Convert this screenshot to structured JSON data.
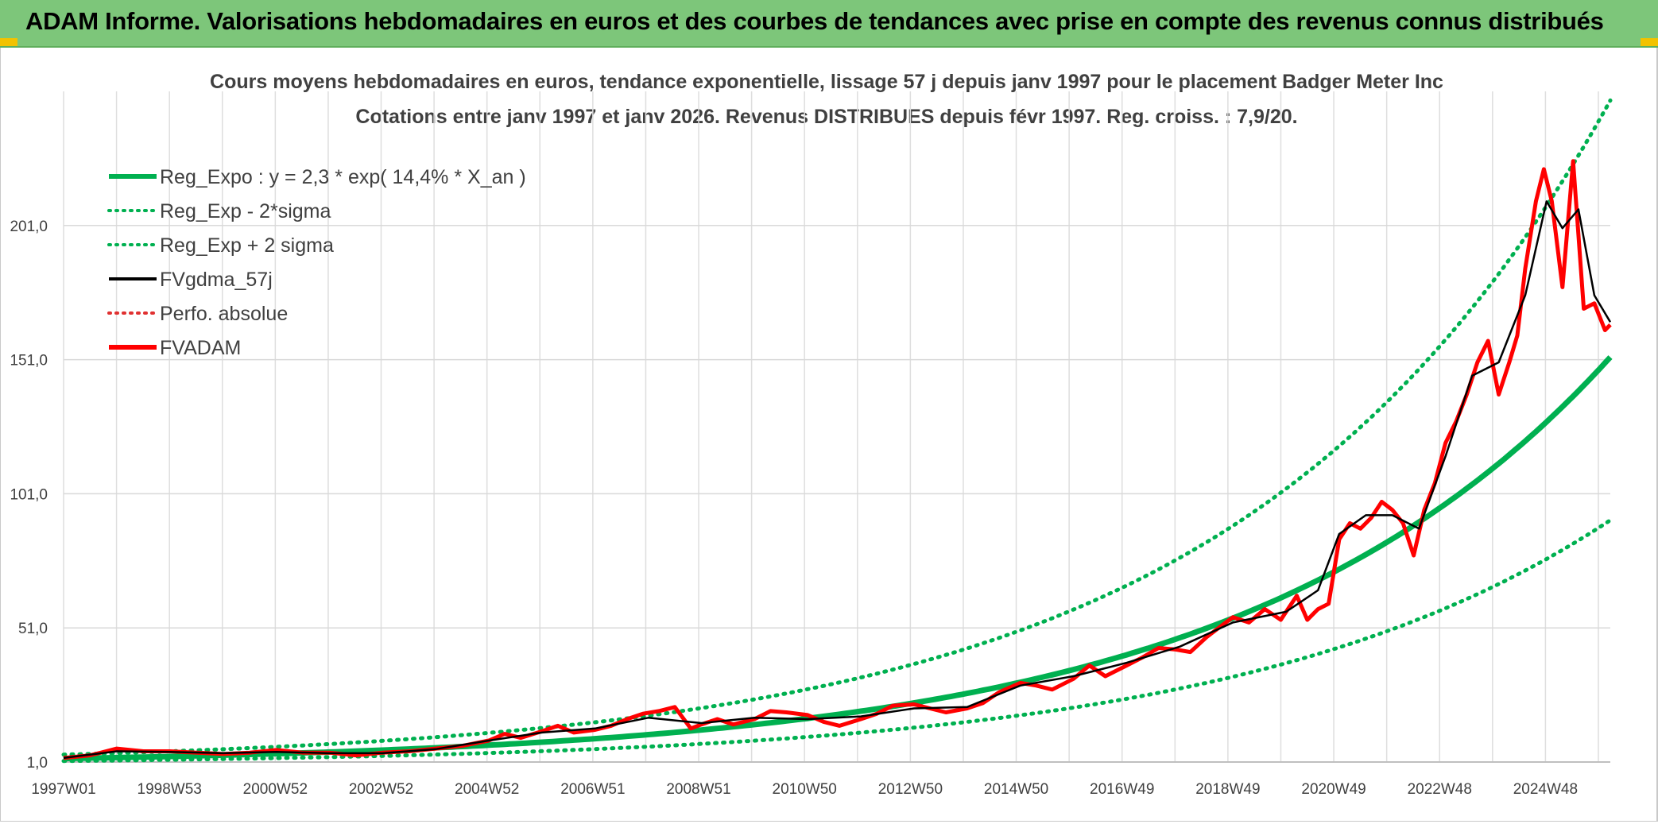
{
  "banner": {
    "title": "ADAM Informe. Valorisations hebdomadaires en euros et des courbes de tendances avec prise en compte des revenus connus distribués"
  },
  "colors": {
    "banner": "#7dc67a",
    "reg_green": "#00b050",
    "fvgdma": "#000000",
    "fvadam": "#ff0000",
    "perfo": "#e03030"
  },
  "chart_data": {
    "type": "line",
    "title": "Cours moyens hebdomadaires en euros, tendance exponentielle, lissage 57 j depuis janv 1997 pour le placement Badger Meter Inc",
    "subtitle": "Cotations entre janv 1997 et janv 2026. Revenus DISTRIBUES depuis févr 1997. Reg. croiss. : 7,9/20.",
    "x_ticks": [
      "1997W01",
      "1998W53",
      "2000W52",
      "2002W52",
      "2004W52",
      "2006W51",
      "2008W51",
      "2010W50",
      "2012W50",
      "2014W50",
      "2016W49",
      "2018W49",
      "2020W49",
      "2022W48",
      "2024W48"
    ],
    "y_ticks": [
      "1,0",
      "51,0",
      "101,0",
      "151,0",
      "201,0"
    ],
    "ylim": [
      1,
      251
    ],
    "xlim": [
      1997.0,
      2026.1
    ],
    "grid": true,
    "legend_position": "top-left",
    "legend": [
      {
        "key": "reg_expo",
        "label": "Reg_Expo : y = 2,3 * exp( 14,4% *  X_an )",
        "style": "solid",
        "color": "#00b050"
      },
      {
        "key": "reg_low",
        "label": "Reg_Exp - 2*sigma",
        "style": "dotted",
        "color": "#00b050"
      },
      {
        "key": "reg_high",
        "label": "Reg_Exp + 2 sigma",
        "style": "dotted",
        "color": "#00b050"
      },
      {
        "key": "fvgdma",
        "label": "FVgdma_57j",
        "style": "solid",
        "color": "#000000"
      },
      {
        "key": "perfo",
        "label": "Perfo. absolue",
        "style": "dotted",
        "color": "#e03030"
      },
      {
        "key": "fvadam",
        "label": "FVADAM",
        "style": "solid",
        "color": "#ff0000"
      }
    ],
    "regression": {
      "a": 2.3,
      "rate": 0.144,
      "low_factor": 0.6,
      "high_factor": 1.63
    },
    "series": [
      {
        "key": "fvadam",
        "x": [
          1997.0,
          1997.5,
          1998.0,
          1998.5,
          1999.0,
          1999.5,
          2000.0,
          2000.5,
          2001.0,
          2001.5,
          2002.0,
          2002.5,
          2003.0,
          2003.5,
          2004.0,
          2004.5,
          2005.0,
          2005.3,
          2005.6,
          2006.0,
          2006.3,
          2006.6,
          2007.0,
          2007.3,
          2007.6,
          2007.9,
          2008.2,
          2008.5,
          2008.8,
          2009.0,
          2009.3,
          2009.6,
          2010.0,
          2010.3,
          2010.6,
          2011.0,
          2011.3,
          2011.6,
          2012.0,
          2012.3,
          2012.6,
          2013.0,
          2013.3,
          2013.6,
          2014.0,
          2014.3,
          2014.6,
          2015.0,
          2015.3,
          2015.6,
          2016.0,
          2016.3,
          2016.6,
          2017.0,
          2017.3,
          2017.6,
          2017.9,
          2018.2,
          2018.5,
          2018.8,
          2019.0,
          2019.3,
          2019.6,
          2019.9,
          2020.2,
          2020.4,
          2020.6,
          2020.8,
          2021.0,
          2021.2,
          2021.4,
          2021.6,
          2021.8,
          2022.0,
          2022.2,
          2022.4,
          2022.6,
          2022.8,
          2023.0,
          2023.2,
          2023.4,
          2023.6,
          2023.8,
          2024.0,
          2024.2,
          2024.35,
          2024.5,
          2024.7,
          2024.85,
          2025.0,
          2025.2,
          2025.4,
          2025.6,
          2025.8,
          2026.0,
          2026.1
        ],
        "y": [
          2.5,
          3.5,
          6.0,
          5.0,
          5.0,
          4.5,
          4.0,
          4.5,
          5.5,
          4.5,
          4.5,
          3.5,
          4.5,
          5.0,
          6.0,
          7.0,
          9.0,
          11.5,
          10.0,
          12.5,
          14.5,
          12.0,
          13.0,
          14.5,
          17.0,
          19.0,
          20.0,
          21.5,
          13.5,
          15.0,
          17.0,
          15.0,
          17.0,
          20.0,
          19.5,
          18.5,
          16.0,
          14.5,
          17.0,
          19.0,
          22.0,
          22.5,
          21.0,
          19.5,
          21.0,
          23.0,
          27.0,
          30.5,
          29.5,
          28.0,
          32.0,
          37.0,
          33.0,
          37.0,
          40.0,
          43.5,
          43.0,
          42.0,
          47.5,
          52.0,
          55.0,
          53.0,
          58.0,
          54.0,
          63.0,
          54.0,
          58.0,
          60.0,
          84.0,
          90.0,
          88.0,
          92.0,
          98.0,
          95.0,
          90.0,
          78.0,
          95.0,
          105.0,
          120.0,
          128.0,
          138.0,
          150.0,
          158.0,
          138.0,
          150.0,
          160.0,
          185.0,
          210.0,
          222.0,
          210.0,
          178.0,
          225.0,
          170.0,
          172.0,
          162.0,
          164.0
        ]
      },
      {
        "key": "fvgdma",
        "x": [
          1997.0,
          1998.0,
          1999.0,
          2000.0,
          2001.0,
          2002.0,
          2003.0,
          2004.0,
          2005.0,
          2006.0,
          2007.0,
          2008.0,
          2009.0,
          2010.0,
          2011.0,
          2012.0,
          2013.0,
          2014.0,
          2015.0,
          2016.0,
          2017.0,
          2018.0,
          2019.0,
          2020.0,
          2020.6,
          2021.0,
          2021.5,
          2022.0,
          2022.5,
          2023.0,
          2023.5,
          2024.0,
          2024.5,
          2024.9,
          2025.2,
          2025.5,
          2025.8,
          2026.1
        ],
        "y": [
          2.5,
          5.0,
          4.8,
          4.3,
          4.8,
          4.3,
          4.3,
          5.8,
          9.0,
          12.0,
          13.5,
          17.5,
          15.5,
          17.5,
          17.0,
          18.0,
          21.0,
          21.5,
          29.5,
          33.0,
          38.0,
          44.0,
          53.0,
          57.0,
          65.0,
          86.0,
          93.0,
          93.0,
          88.0,
          115.0,
          145.0,
          150.0,
          175.0,
          210.0,
          200.0,
          207.0,
          175.0,
          165.0
        ]
      }
    ]
  }
}
